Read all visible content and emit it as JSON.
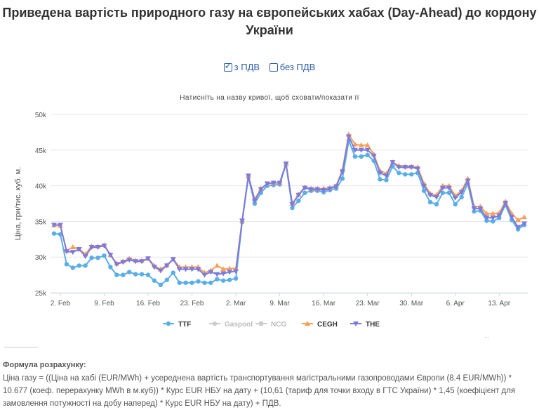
{
  "title": "Приведена вартість природного газу на європейських хабах (Day-Ahead) до кордону України",
  "vat_options": [
    {
      "label": "з ПДВ",
      "checked": true
    },
    {
      "label": "без ПДВ",
      "checked": false
    }
  ],
  "hint": "Натисніть на назву кривої, щоб сховати/показати її",
  "formula_title": "Формула розрахунку:",
  "formula_text": "Ціна газу = ((Ціна на хабі (EUR/MWh) + усереднена вартість транспортування магістральними газопроводами Європи (8.4 EUR/MWh)) * 10.677 (коеф. перерахунку MWh в м.куб)) * Курс EUR НБУ на дату + (10,61 (тариф для точки входу в ГТС України) * 1,45 (коефіцієнт для замовлення потужності на добу наперед) * Курс EUR НБУ на дату) + ПДВ.",
  "credits": "...",
  "chart_data": {
    "type": "line",
    "title": "",
    "xlabel": "",
    "ylabel": "Ціна, грн/тис. куб. м.",
    "ylim": [
      25000,
      50000
    ],
    "y_ticks": [
      25000,
      30000,
      35000,
      40000,
      45000,
      50000
    ],
    "y_tick_labels": [
      "25k",
      "30k",
      "35k",
      "40k",
      "45k",
      "50k"
    ],
    "x_start": "2021-02-01",
    "x_tick_labels": [
      {
        "label": "2. Feb",
        "date": "2021-02-02"
      },
      {
        "label": "9. Feb",
        "date": "2021-02-09"
      },
      {
        "label": "16. Feb",
        "date": "2021-02-16"
      },
      {
        "label": "23. Feb",
        "date": "2021-02-23"
      },
      {
        "label": "2. Mar",
        "date": "2021-03-02"
      },
      {
        "label": "9. Mar",
        "date": "2021-03-09"
      },
      {
        "label": "16. Mar",
        "date": "2021-03-16"
      },
      {
        "label": "23. Mar",
        "date": "2021-03-23"
      },
      {
        "label": "30. Mar",
        "date": "2021-03-30"
      },
      {
        "label": "6. Apr",
        "date": "2021-04-06"
      },
      {
        "label": "13. Apr",
        "date": "2021-04-13"
      }
    ],
    "grid": true,
    "legend": "bottom",
    "series": [
      {
        "name": "TTF",
        "color": "#5aaee8",
        "marker": "circle",
        "visible": true,
        "values": [
          33300,
          33200,
          29000,
          28500,
          28800,
          28800,
          29900,
          29900,
          30200,
          28600,
          27500,
          27500,
          27900,
          27600,
          27600,
          27500,
          26700,
          26100,
          26800,
          27800,
          26400,
          26400,
          26400,
          26600,
          26400,
          26400,
          26900,
          26700,
          26800,
          27000,
          34900,
          41200,
          37500,
          39000,
          40000,
          40100,
          40200,
          43000,
          36900,
          37900,
          39000,
          39300,
          39300,
          39100,
          39400,
          39600,
          41000,
          46300,
          44100,
          44100,
          44300,
          43500,
          40900,
          40800,
          42700,
          41800,
          41600,
          41600,
          41800,
          39300,
          37700,
          37400,
          39000,
          39000,
          37400,
          38400,
          40300,
          36400,
          36500,
          35100,
          35000,
          35500,
          37300,
          35200,
          33900,
          34500
        ]
      },
      {
        "name": "Gaspool",
        "color": "#cccccc",
        "marker": "circle",
        "visible": false,
        "values": []
      },
      {
        "name": "NCG",
        "color": "#cccccc",
        "marker": "square",
        "visible": false,
        "values": []
      },
      {
        "name": "CEGH",
        "color": "#f5a05a",
        "marker": "triangle",
        "visible": true,
        "values": [
          34500,
          34400,
          30900,
          31400,
          31100,
          30400,
          31500,
          31500,
          31700,
          30300,
          29100,
          29400,
          29800,
          29500,
          29500,
          29800,
          28800,
          28300,
          28900,
          29700,
          28600,
          28600,
          28600,
          28600,
          27800,
          28100,
          28800,
          28300,
          28400,
          28400,
          35100,
          41400,
          38100,
          39600,
          40300,
          40400,
          40400,
          43100,
          37500,
          38800,
          39800,
          39600,
          39600,
          39600,
          39700,
          40000,
          42200,
          47200,
          45800,
          45700,
          45700,
          44400,
          42100,
          41700,
          43300,
          42800,
          42700,
          42700,
          42600,
          40300,
          38900,
          38700,
          40000,
          40000,
          38600,
          39300,
          41000,
          37100,
          37100,
          36100,
          36100,
          36200,
          37800,
          36100,
          35200,
          35600
        ]
      },
      {
        "name": "THE",
        "color": "#7a7ae0",
        "marker": "triangle-down",
        "visible": true,
        "values": [
          34500,
          34500,
          30800,
          30700,
          31100,
          30100,
          31400,
          31400,
          31600,
          30300,
          29000,
          29300,
          29600,
          29400,
          29400,
          29800,
          28600,
          28100,
          28800,
          29700,
          28300,
          28300,
          28300,
          28300,
          27500,
          27900,
          27600,
          27700,
          27900,
          28000,
          35100,
          41400,
          37900,
          39500,
          40300,
          40400,
          40400,
          43100,
          37400,
          38700,
          39700,
          39500,
          39500,
          39400,
          39600,
          39900,
          42000,
          46900,
          45000,
          45000,
          45000,
          44200,
          41800,
          41400,
          43300,
          42600,
          42600,
          42600,
          42400,
          40000,
          38700,
          38400,
          39700,
          39700,
          38300,
          39100,
          40700,
          36800,
          36800,
          35500,
          35500,
          35800,
          37600,
          35600,
          34200,
          34700
        ]
      }
    ]
  }
}
